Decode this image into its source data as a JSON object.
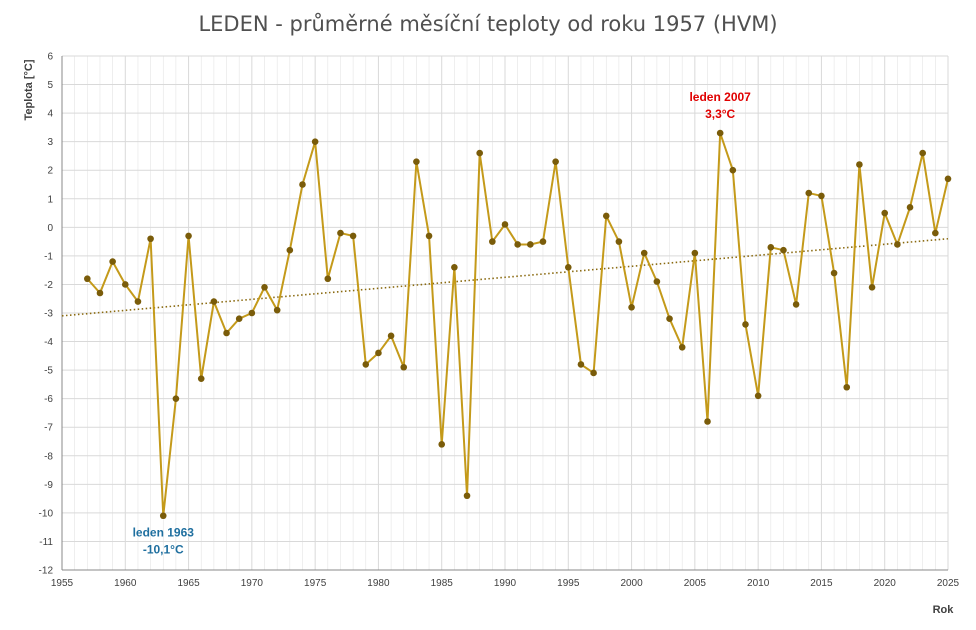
{
  "colors": {
    "line": "#c49a1a",
    "marker": "#7a5c0a",
    "trend": "#8a6a10",
    "grid": "#d9d9d9",
    "axis": "#888888",
    "max_annotation": "#e00000",
    "min_annotation": "#1f6f9f"
  },
  "chart_data": {
    "type": "line",
    "title": "LEDEN - průměrné měsíční teploty od roku 1957 (HVM)",
    "xlabel": "Rok",
    "ylabel": "Teplota  [°C]",
    "xlim": [
      1955,
      2025
    ],
    "ylim": [
      -12,
      6
    ],
    "xticks": [
      1955,
      1960,
      1965,
      1970,
      1975,
      1980,
      1985,
      1990,
      1995,
      2000,
      2005,
      2010,
      2015,
      2020,
      2025
    ],
    "yticks": [
      -12,
      -11,
      -10,
      -9,
      -8,
      -7,
      -6,
      -5,
      -4,
      -3,
      -2,
      -1,
      0,
      1,
      2,
      3,
      4,
      5,
      6
    ],
    "grid": true,
    "series": [
      {
        "x": [
          1957,
          1958,
          1959,
          1960,
          1961,
          1962,
          1963,
          1964,
          1965,
          1966,
          1967,
          1968,
          1969,
          1970,
          1971,
          1972,
          1973,
          1974,
          1975,
          1976,
          1977,
          1978,
          1979,
          1980,
          1981,
          1982,
          1983,
          1984,
          1985,
          1986,
          1987,
          1988,
          1989,
          1990,
          1991,
          1992,
          1993,
          1994,
          1995,
          1996,
          1997,
          1998,
          1999,
          2000,
          2001,
          2002,
          2003,
          2004,
          2005,
          2006,
          2007,
          2008,
          2009,
          2010,
          2011,
          2012,
          2013,
          2014,
          2015,
          2016,
          2017,
          2018,
          2019,
          2020,
          2021,
          2022,
          2023,
          2024,
          2025
        ],
        "values": [
          -1.8,
          -2.3,
          -1.2,
          -2.0,
          -2.6,
          -0.4,
          -10.1,
          -6.0,
          -0.3,
          -5.3,
          -2.6,
          -3.7,
          -3.2,
          -3.0,
          -2.1,
          -2.9,
          -0.8,
          1.5,
          3.0,
          -1.8,
          -0.2,
          -0.3,
          -4.8,
          -4.4,
          -3.8,
          -4.9,
          2.3,
          -0.3,
          -7.6,
          -1.4,
          -9.4,
          2.6,
          -0.5,
          0.1,
          -0.6,
          -0.6,
          -0.5,
          2.3,
          -1.4,
          -4.8,
          -5.1,
          0.4,
          -0.5,
          -2.8,
          -0.9,
          -1.9,
          -3.2,
          -4.2,
          -0.9,
          -6.8,
          3.3,
          2.0,
          -3.4,
          -5.9,
          -0.7,
          -0.8,
          -2.7,
          1.2,
          1.1,
          -1.6,
          -5.6,
          2.2,
          -2.1,
          0.5,
          -0.6,
          0.7,
          2.6,
          -0.2,
          1.7
        ]
      }
    ],
    "trendline": {
      "type": "linear",
      "style": "dotted",
      "x": [
        1955,
        2025
      ],
      "values": [
        -3.1,
        -0.4
      ]
    },
    "annotations": [
      {
        "id": "max",
        "lines": [
          "leden 2007",
          "3,3°C"
        ],
        "x": 2007,
        "y": 3.3
      },
      {
        "id": "min",
        "lines": [
          "leden 1963",
          "-10,1°C"
        ],
        "x": 1963,
        "y": -10.1
      }
    ]
  }
}
